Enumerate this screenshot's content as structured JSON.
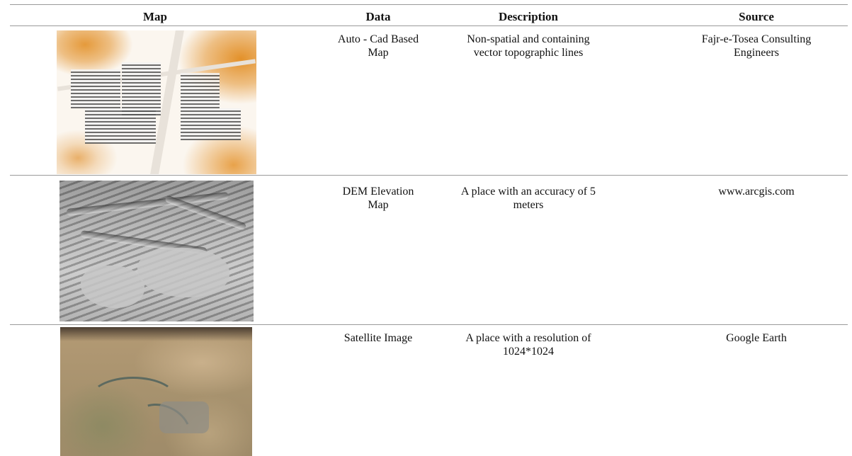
{
  "table": {
    "headers": {
      "map": "Map",
      "data": "Data",
      "description": "Description",
      "source": "Source"
    },
    "rows": [
      {
        "map_image": "auto-cad-map-thumbnail",
        "data_lines": [
          "Auto - Cad  Based",
          "Map"
        ],
        "description_lines": [
          "Non-spatial and containing",
          "vector topographic lines"
        ],
        "source_lines": [
          "Fajr-e-Tosea Consulting",
          "Engineers"
        ]
      },
      {
        "map_image": "dem-elevation-map-thumbnail",
        "data_lines": [
          "DEM Elevation",
          "Map"
        ],
        "description_lines": [
          "A place with an accuracy of 5",
          "meters"
        ],
        "source_lines": [
          "www.arcgis.com"
        ]
      },
      {
        "map_image": "satellite-image-thumbnail",
        "data_lines": [
          "Satellite Image"
        ],
        "description_lines": [
          "A place with a resolution of",
          "1024*1024"
        ],
        "source_lines": [
          "Google Earth"
        ]
      }
    ]
  }
}
